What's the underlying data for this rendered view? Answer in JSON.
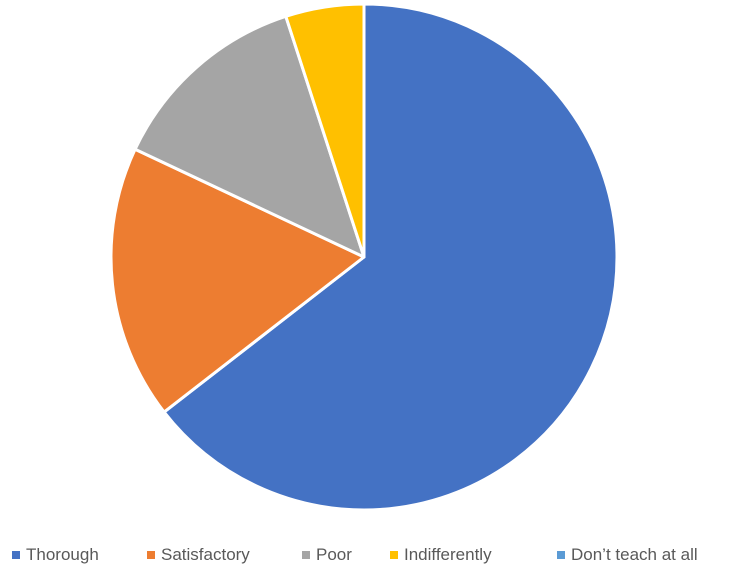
{
  "chart_data": {
    "type": "pie",
    "title": "",
    "start_angle_deg": 0,
    "direction": "clockwise",
    "categories": [
      "Thorough",
      "Satisfactory",
      "Poor",
      "Indifferently",
      "Don’t teach at all"
    ],
    "values": [
      64.5,
      17.5,
      13.0,
      5.0,
      0.0
    ],
    "colors": [
      "#4472C4",
      "#ED7D31",
      "#A5A5A5",
      "#FFC000",
      "#5B9BD5"
    ],
    "legend_position": "bottom"
  }
}
